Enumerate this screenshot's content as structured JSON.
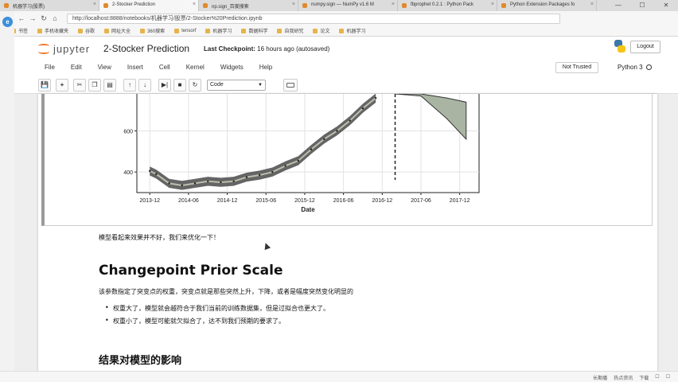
{
  "browser": {
    "tabs": [
      {
        "label": "机器学习(股票)",
        "active": false
      },
      {
        "label": "2-Stocker Prediction",
        "active": true
      },
      {
        "label": "np.sign_百度搜索",
        "active": false
      },
      {
        "label": "numpy.sign — NumPy v1.6 M",
        "active": false
      },
      {
        "label": "fbprophet 0.2.1 : Python Pack",
        "active": false
      },
      {
        "label": "Python Extension Packages fo",
        "active": false
      }
    ],
    "window_controls": [
      "—",
      "☐",
      "✕"
    ],
    "url": "http://localhost:8888/notebooks/机器学习/股票/2-Stocker%20Prediction.ipynb",
    "bookmarks": [
      "书签",
      "手机收藏夹",
      "谷歌",
      "网址大全",
      "360搜索",
      "tensorf",
      "机器学习",
      "数据科学",
      "自我研究",
      "论文",
      "机器学习"
    ]
  },
  "jupyter": {
    "logo_text": "jupyter",
    "notebook_title": "2-Stocker Prediction",
    "checkpoint_label": "Last Checkpoint:",
    "checkpoint_time": "16 hours ago (autosaved)",
    "logout_label": "Logout",
    "menu": [
      "File",
      "Edit",
      "View",
      "Insert",
      "Cell",
      "Kernel",
      "Widgets",
      "Help"
    ],
    "trust_label": "Not Trusted",
    "kernel_name": "Python 3",
    "cell_type": "Code"
  },
  "chart_data": {
    "type": "line",
    "xlabel": "Date",
    "ylabel": "",
    "x_ticks": [
      "2013-12",
      "2014-06",
      "2014-12",
      "2015-06",
      "2015-12",
      "2016-06",
      "2016-12",
      "2017-06",
      "2017-12"
    ],
    "y_ticks": [
      400,
      600
    ],
    "ylim": [
      300,
      780
    ],
    "grid": true,
    "changepoint_marker": "2017-02",
    "series": [
      {
        "x": [
          "2013-12",
          "2014-01",
          "2014-03",
          "2014-05",
          "2014-07",
          "2014-09",
          "2014-11",
          "2015-01",
          "2015-03",
          "2015-05",
          "2015-07",
          "2015-09",
          "2015-11",
          "2016-01",
          "2016-03",
          "2016-05",
          "2016-07",
          "2016-09",
          "2016-11"
        ],
        "values": [
          405,
          390,
          345,
          335,
          345,
          355,
          350,
          355,
          375,
          385,
          400,
          430,
          455,
          510,
          560,
          600,
          650,
          710,
          760
        ]
      }
    ],
    "forecast_band": {
      "x": [
        "2017-02",
        "2017-06",
        "2017-10",
        "2018-01"
      ],
      "upper": [
        780,
        780,
        760,
        740
      ],
      "lower": [
        780,
        770,
        660,
        560
      ]
    }
  },
  "markdown": {
    "p1": "模型看起来效果并不好，我们来优化一下！",
    "h2": "Changepoint Prior Scale",
    "p2": "该参数指定了突变点的权重，突变点就是那些突然上升，下降，或者是幅度突然变化明显的",
    "bullets": [
      "权重大了，模型就会越符合于我们当前的训练数据集，但是过拟合也更大了。",
      "权重小了，模型可能就欠拟合了，达不到我们预期的要求了。"
    ],
    "h3": "结果对模型的影响"
  },
  "taskbar": [
    "长期播",
    "热点资讯",
    "下载",
    "☐",
    "☐"
  ]
}
